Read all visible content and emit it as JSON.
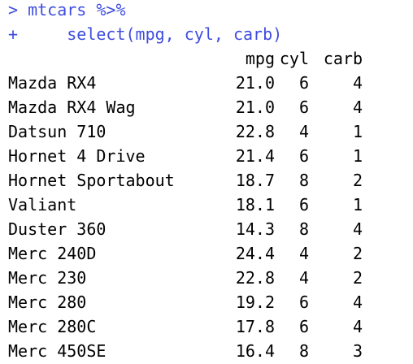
{
  "console": {
    "commands": [
      "> mtcars %>%",
      "+     select(mpg, cyl, carb)"
    ],
    "colors": {
      "command": "#3f4de0",
      "output": "#000000",
      "background": "#ffffff"
    },
    "table": {
      "headers": [
        "mpg",
        "cyl",
        "carb"
      ],
      "rows": [
        {
          "name": "Mazda RX4",
          "mpg": "21.0",
          "cyl": "6",
          "carb": "4"
        },
        {
          "name": "Mazda RX4 Wag",
          "mpg": "21.0",
          "cyl": "6",
          "carb": "4"
        },
        {
          "name": "Datsun 710",
          "mpg": "22.8",
          "cyl": "4",
          "carb": "1"
        },
        {
          "name": "Hornet 4 Drive",
          "mpg": "21.4",
          "cyl": "6",
          "carb": "1"
        },
        {
          "name": "Hornet Sportabout",
          "mpg": "18.7",
          "cyl": "8",
          "carb": "2"
        },
        {
          "name": "Valiant",
          "mpg": "18.1",
          "cyl": "6",
          "carb": "1"
        },
        {
          "name": "Duster 360",
          "mpg": "14.3",
          "cyl": "8",
          "carb": "4"
        },
        {
          "name": "Merc 240D",
          "mpg": "24.4",
          "cyl": "4",
          "carb": "2"
        },
        {
          "name": "Merc 230",
          "mpg": "22.8",
          "cyl": "4",
          "carb": "2"
        },
        {
          "name": "Merc 280",
          "mpg": "19.2",
          "cyl": "6",
          "carb": "4"
        },
        {
          "name": "Merc 280C",
          "mpg": "17.8",
          "cyl": "6",
          "carb": "4"
        },
        {
          "name": "Merc 450SE",
          "mpg": "16.4",
          "cyl": "8",
          "carb": "3"
        }
      ]
    }
  }
}
